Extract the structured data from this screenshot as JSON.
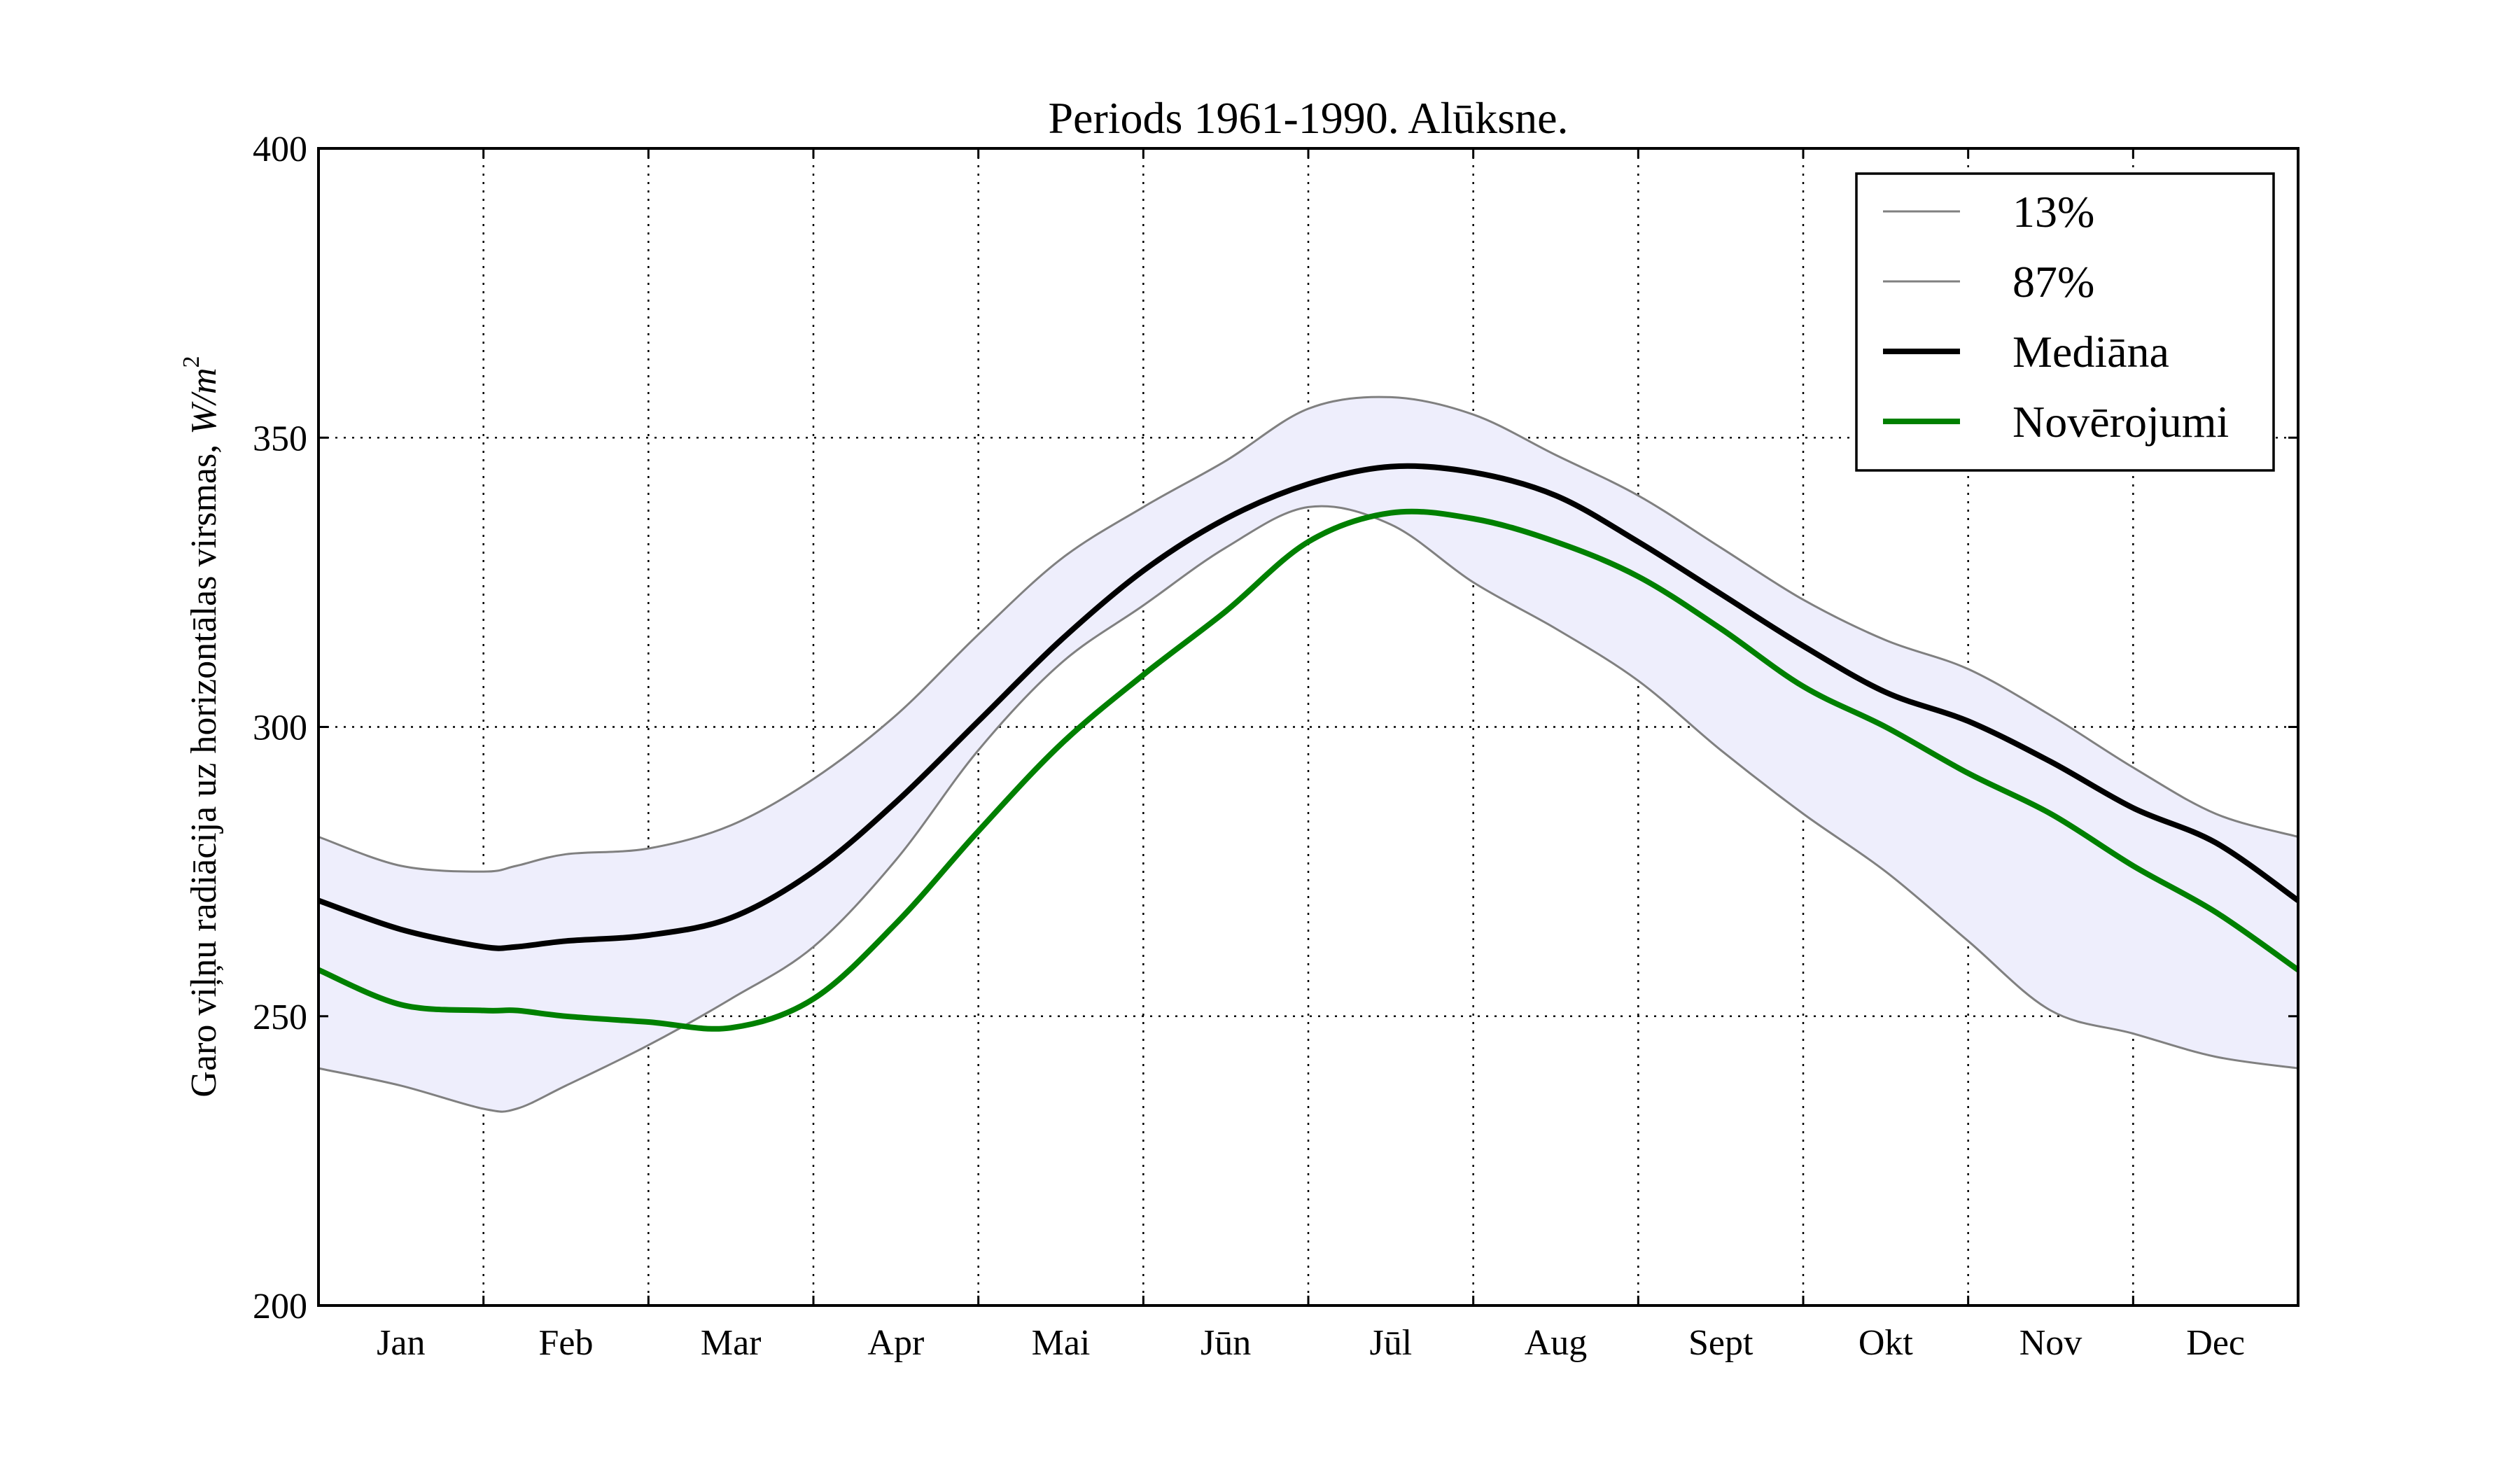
{
  "chart_data": {
    "type": "line",
    "title": "Periods 1961-1990. Alūksne.",
    "xlabel": "",
    "ylabel": "Garo viļņu radiācija uz horizontālas virsmas,",
    "ylabel_unit": "W/m",
    "ylabel_unit_exp": "2",
    "ylim": [
      200,
      400
    ],
    "yticks": [
      200,
      250,
      300,
      350,
      400
    ],
    "grid": true,
    "legend_position": "top-right",
    "categories": [
      "Jan",
      "Feb",
      "Mar",
      "Apr",
      "Mai",
      "Jūn",
      "Jūl",
      "Aug",
      "Sept",
      "Okt",
      "Nov",
      "Dec"
    ],
    "x": [
      0,
      0.5,
      1,
      1.2,
      1.5,
      2,
      2.5,
      3,
      3.5,
      4,
      4.5,
      5,
      5.5,
      6,
      6.5,
      7,
      7.5,
      8,
      8.5,
      9,
      9.5,
      10,
      10.5,
      11,
      11.5,
      12
    ],
    "band": {
      "lower": "13%",
      "upper": "87%",
      "fill_color": "#eeeefc"
    },
    "series": [
      {
        "name": "13%",
        "color": "#808080",
        "values": [
          241,
          238,
          234,
          234,
          238,
          245,
          253,
          262,
          277,
          296,
          311,
          321,
          331,
          338,
          335,
          325,
          317,
          308,
          296,
          285,
          275,
          263,
          251,
          247,
          243,
          241
        ]
      },
      {
        "name": "87%",
        "color": "#808080",
        "values": [
          281,
          276,
          275,
          276,
          278,
          279,
          283,
          291,
          302,
          316,
          329,
          338,
          346,
          355,
          357,
          354,
          347,
          340,
          331,
          322,
          315,
          310,
          302,
          293,
          285,
          281
        ]
      },
      {
        "name": "Mediāna",
        "color": "#000000",
        "values": [
          270,
          265,
          262,
          262,
          263,
          264,
          267,
          275,
          287,
          301,
          315,
          327,
          336,
          342,
          345,
          344,
          340,
          332,
          323,
          314,
          306,
          301,
          294,
          286,
          280,
          270
        ]
      },
      {
        "name": "Novērojumi",
        "color": "#008000",
        "values": [
          258,
          252,
          251,
          251,
          250,
          249,
          248,
          253,
          266,
          282,
          297,
          309,
          320,
          332,
          337,
          336,
          332,
          326,
          317,
          307,
          300,
          292,
          285,
          276,
          268,
          258
        ]
      }
    ]
  }
}
